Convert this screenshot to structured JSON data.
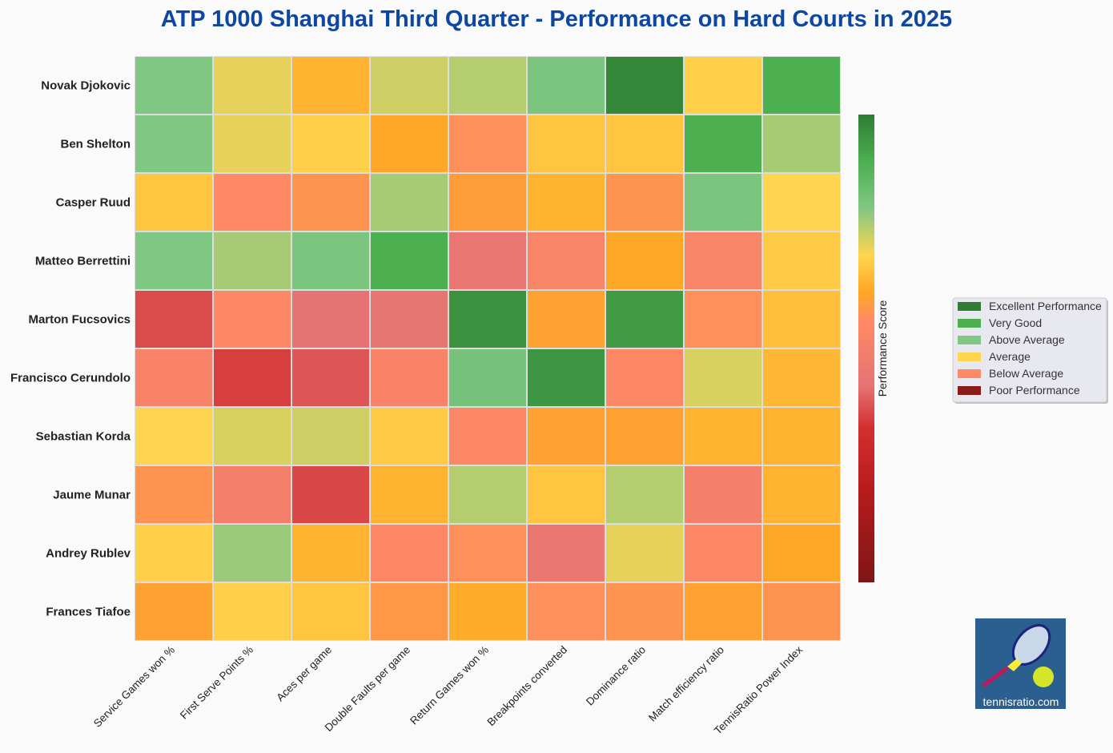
{
  "chart_data": {
    "type": "heatmap",
    "title": "ATP 1000 Shanghai Third Quarter - Performance on Hard Courts in 2025",
    "colorbar_label": "Performance Score",
    "rows": [
      "Novak Djokovic",
      "Ben Shelton",
      "Casper Ruud",
      "Matteo Berrettini",
      "Marton Fucsovics",
      "Francisco Cerundolo",
      "Sebastian Korda",
      "Jaume Munar",
      "Andrey Rublev",
      "Frances Tiafoe"
    ],
    "columns": [
      "Service Games won %",
      "First Serve Points %",
      "Aces per game",
      "Double Faults per game",
      "Return Games won %",
      "Breakpoints converted",
      "Dominance ratio",
      "Match efficiency ratio",
      "TennisRatio Power Index"
    ],
    "value_range": [
      0,
      1
    ],
    "values": [
      [
        0.8,
        0.72,
        0.64,
        0.74,
        0.76,
        0.81,
        0.98,
        0.69,
        0.9
      ],
      [
        0.8,
        0.72,
        0.69,
        0.62,
        0.57,
        0.67,
        0.67,
        0.9,
        0.77
      ],
      [
        0.67,
        0.56,
        0.58,
        0.77,
        0.6,
        0.64,
        0.58,
        0.81,
        0.7
      ],
      [
        0.8,
        0.77,
        0.81,
        0.9,
        0.44,
        0.53,
        0.62,
        0.53,
        0.68
      ],
      [
        0.37,
        0.55,
        0.42,
        0.43,
        0.96,
        0.61,
        0.94,
        0.57,
        0.66
      ],
      [
        0.52,
        0.35,
        0.38,
        0.52,
        0.82,
        0.95,
        0.55,
        0.73,
        0.65
      ],
      [
        0.7,
        0.73,
        0.74,
        0.68,
        0.55,
        0.61,
        0.61,
        0.64,
        0.64
      ],
      [
        0.58,
        0.5,
        0.36,
        0.64,
        0.76,
        0.67,
        0.76,
        0.5,
        0.64
      ],
      [
        0.69,
        0.78,
        0.64,
        0.55,
        0.57,
        0.45,
        0.72,
        0.55,
        0.62
      ],
      [
        0.61,
        0.69,
        0.67,
        0.59,
        0.63,
        0.57,
        0.58,
        0.61,
        0.58
      ]
    ],
    "colorscale": [
      [
        0.0,
        "#7f1518"
      ],
      [
        0.2,
        "#b71c1c"
      ],
      [
        0.33,
        "#d32f2f"
      ],
      [
        0.42,
        "#e57373"
      ],
      [
        0.56,
        "#ff8a65"
      ],
      [
        0.62,
        "#ffa726"
      ],
      [
        0.7,
        "#ffd54f"
      ],
      [
        0.8,
        "#81c784"
      ],
      [
        0.9,
        "#4caf50"
      ],
      [
        1.0,
        "#2e7d32"
      ]
    ],
    "legend": {
      "placement": "right",
      "items": [
        {
          "label": "Excellent Performance",
          "color": "#2e7d32"
        },
        {
          "label": "Very Good",
          "color": "#4caf50"
        },
        {
          "label": "Above Average",
          "color": "#81c784"
        },
        {
          "label": "Average",
          "color": "#ffd54f"
        },
        {
          "label": "Below Average",
          "color": "#ff8a65"
        },
        {
          "label": "Poor Performance",
          "color": "#8b1a1a"
        }
      ]
    },
    "title_color": "#0d47a1"
  },
  "logo": {
    "text": "tennisratio.com"
  }
}
